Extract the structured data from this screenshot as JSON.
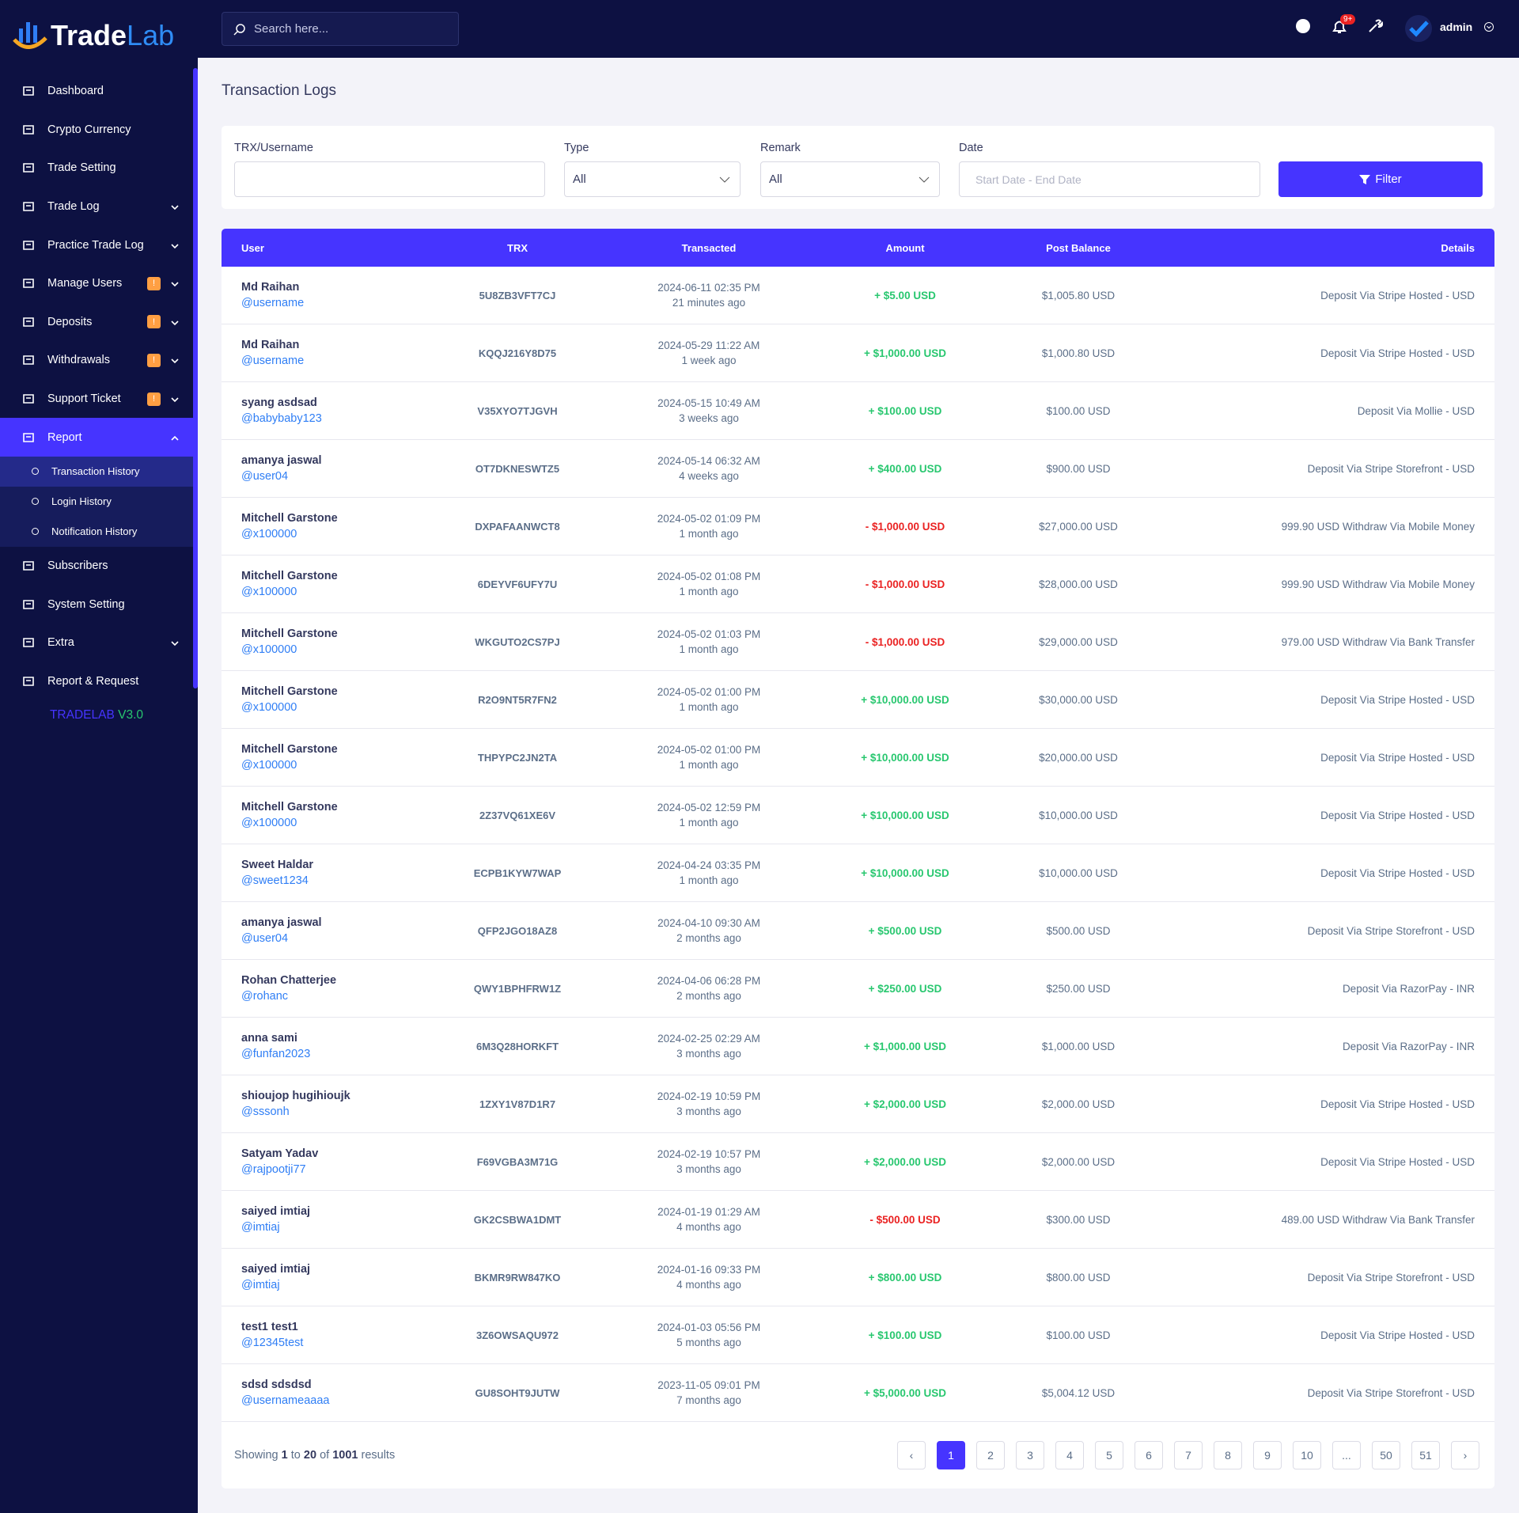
{
  "sidebar": {
    "logo": [
      "Trade",
      "Lab"
    ],
    "menu": [
      {
        "label": "Dashboard"
      },
      {
        "label": "Crypto Currency"
      },
      {
        "label": "Trade Setting"
      },
      {
        "label": "Trade Log",
        "expandable": true
      },
      {
        "label": "Practice Trade Log",
        "expandable": true
      },
      {
        "label": "Manage Users",
        "badge": "!",
        "expandable": true
      },
      {
        "label": "Deposits",
        "badge": "!",
        "expandable": true
      },
      {
        "label": "Withdrawals",
        "badge": "!",
        "expandable": true
      },
      {
        "label": "Support Ticket",
        "badge": "!",
        "expandable": true
      },
      {
        "label": "Report",
        "expandable": true,
        "active": true,
        "submenu": [
          "Transaction History",
          "Login History",
          "Notification History"
        ]
      },
      {
        "label": "Subscribers"
      },
      {
        "label": "System Setting"
      },
      {
        "label": "Extra",
        "expandable": true
      },
      {
        "label": "Report & Request"
      }
    ],
    "version": [
      "TRADELAB",
      "V3.0"
    ]
  },
  "topbar": {
    "search_placeholder": "Search here...",
    "notification_badge": "9+",
    "user": "admin"
  },
  "page_title": "Transaction Logs",
  "filters": {
    "trx_label": "TRX/Username",
    "type_label": "Type",
    "type_value": "All",
    "remark_label": "Remark",
    "remark_value": "All",
    "date_label": "Date",
    "date_placeholder": "Start Date - End Date",
    "button": "Filter"
  },
  "table": {
    "columns": [
      "User",
      "TRX",
      "Transacted",
      "Amount",
      "Post Balance",
      "Details"
    ],
    "rows": [
      [
        "Md Raihan",
        "@username",
        "5U8ZB3VFT7CJ",
        "2024-06-11 02:35 PM",
        "21 minutes ago",
        "+ $5.00 USD",
        "$1,005.80 USD",
        "Deposit Via Stripe Hosted - USD"
      ],
      [
        "Md Raihan",
        "@username",
        "KQQJ216Y8D75",
        "2024-05-29 11:22 AM",
        "1 week ago",
        "+ $1,000.00 USD",
        "$1,000.80 USD",
        "Deposit Via Stripe Hosted - USD"
      ],
      [
        "syang asdsad",
        "@babybaby123",
        "V35XYO7TJGVH",
        "2024-05-15 10:49 AM",
        "3 weeks ago",
        "+ $100.00 USD",
        "$100.00 USD",
        "Deposit Via Mollie - USD"
      ],
      [
        "amanya jaswal",
        "@user04",
        "OT7DKNESWTZ5",
        "2024-05-14 06:32 AM",
        "4 weeks ago",
        "+ $400.00 USD",
        "$900.00 USD",
        "Deposit Via Stripe Storefront - USD"
      ],
      [
        "Mitchell Garstone",
        "@x100000",
        "DXPAFAANWCT8",
        "2024-05-02 01:09 PM",
        "1 month ago",
        "- $1,000.00 USD",
        "$27,000.00 USD",
        "999.90 USD Withdraw Via Mobile Money"
      ],
      [
        "Mitchell Garstone",
        "@x100000",
        "6DEYVF6UFY7U",
        "2024-05-02 01:08 PM",
        "1 month ago",
        "- $1,000.00 USD",
        "$28,000.00 USD",
        "999.90 USD Withdraw Via Mobile Money"
      ],
      [
        "Mitchell Garstone",
        "@x100000",
        "WKGUTO2CS7PJ",
        "2024-05-02 01:03 PM",
        "1 month ago",
        "- $1,000.00 USD",
        "$29,000.00 USD",
        "979.00 USD Withdraw Via Bank Transfer"
      ],
      [
        "Mitchell Garstone",
        "@x100000",
        "R2O9NT5R7FN2",
        "2024-05-02 01:00 PM",
        "1 month ago",
        "+ $10,000.00 USD",
        "$30,000.00 USD",
        "Deposit Via Stripe Hosted - USD"
      ],
      [
        "Mitchell Garstone",
        "@x100000",
        "THPYPC2JN2TA",
        "2024-05-02 01:00 PM",
        "1 month ago",
        "+ $10,000.00 USD",
        "$20,000.00 USD",
        "Deposit Via Stripe Hosted - USD"
      ],
      [
        "Mitchell Garstone",
        "@x100000",
        "2Z37VQ61XE6V",
        "2024-05-02 12:59 PM",
        "1 month ago",
        "+ $10,000.00 USD",
        "$10,000.00 USD",
        "Deposit Via Stripe Hosted - USD"
      ],
      [
        "Sweet Haldar",
        "@sweet1234",
        "ECPB1KYW7WAP",
        "2024-04-24 03:35 PM",
        "1 month ago",
        "+ $10,000.00 USD",
        "$10,000.00 USD",
        "Deposit Via Stripe Hosted - USD"
      ],
      [
        "amanya jaswal",
        "@user04",
        "QFP2JGO18AZ8",
        "2024-04-10 09:30 AM",
        "2 months ago",
        "+ $500.00 USD",
        "$500.00 USD",
        "Deposit Via Stripe Storefront - USD"
      ],
      [
        "Rohan Chatterjee",
        "@rohanc",
        "QWY1BPHFRW1Z",
        "2024-04-06 06:28 PM",
        "2 months ago",
        "+ $250.00 USD",
        "$250.00 USD",
        "Deposit Via RazorPay - INR"
      ],
      [
        "anna sami",
        "@funfan2023",
        "6M3Q28HORKFT",
        "2024-02-25 02:29 AM",
        "3 months ago",
        "+ $1,000.00 USD",
        "$1,000.00 USD",
        "Deposit Via RazorPay - INR"
      ],
      [
        "shioujop hugihioujk",
        "@sssonh",
        "1ZXY1V87D1R7",
        "2024-02-19 10:59 PM",
        "3 months ago",
        "+ $2,000.00 USD",
        "$2,000.00 USD",
        "Deposit Via Stripe Hosted - USD"
      ],
      [
        "Satyam Yadav",
        "@rajpootji77",
        "F69VGBA3M71G",
        "2024-02-19 10:57 PM",
        "3 months ago",
        "+ $2,000.00 USD",
        "$2,000.00 USD",
        "Deposit Via Stripe Hosted - USD"
      ],
      [
        "saiyed imtiaj",
        "@imtiaj",
        "GK2CSBWA1DMT",
        "2024-01-19 01:29 AM",
        "4 months ago",
        "- $500.00 USD",
        "$300.00 USD",
        "489.00 USD Withdraw Via Bank Transfer"
      ],
      [
        "saiyed imtiaj",
        "@imtiaj",
        "BKMR9RW847KO",
        "2024-01-16 09:33 PM",
        "4 months ago",
        "+ $800.00 USD",
        "$800.00 USD",
        "Deposit Via Stripe Storefront - USD"
      ],
      [
        "test1 test1",
        "@12345test",
        "3Z6OWSAQU972",
        "2024-01-03 05:56 PM",
        "5 months ago",
        "+ $100.00 USD",
        "$100.00 USD",
        "Deposit Via Stripe Hosted - USD"
      ],
      [
        "sdsd sdsdsd",
        "@usernameaaaa",
        "GU8SOHT9JUTW",
        "2023-11-05 09:01 PM",
        "7 months ago",
        "+ $5,000.00 USD",
        "$5,004.12 USD",
        "Deposit Via Stripe Storefront - USD"
      ]
    ]
  },
  "pagination": {
    "summary": [
      "Showing",
      "1",
      "to",
      "20",
      "of",
      "1001",
      "results"
    ],
    "pages": [
      "‹",
      "1",
      "2",
      "3",
      "4",
      "5",
      "6",
      "7",
      "8",
      "9",
      "10",
      "...",
      "50",
      "51",
      "›"
    ]
  }
}
